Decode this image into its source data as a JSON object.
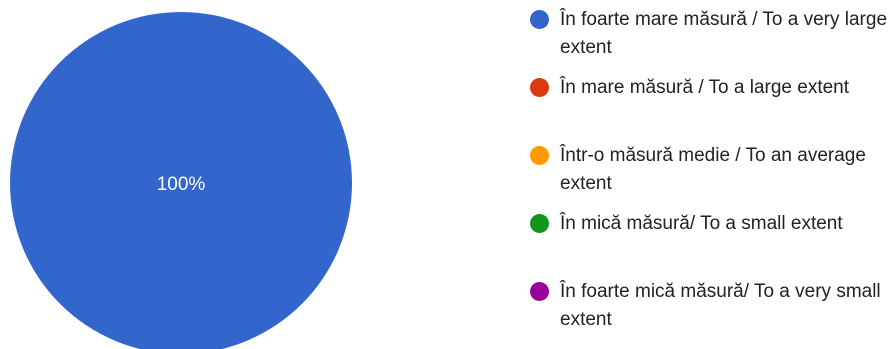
{
  "chart_data": {
    "type": "pie",
    "series": [
      {
        "name": "În foarte mare măsură / To a very large extent",
        "value": 100,
        "color": "#3366cc"
      },
      {
        "name": "În mare măsură / To a large extent",
        "value": 0,
        "color": "#dc3912"
      },
      {
        "name": "Într-o măsură medie / To an average extent",
        "value": 0,
        "color": "#ff9900"
      },
      {
        "name": "În mică măsură/ To a small extent",
        "value": 0,
        "color": "#109618"
      },
      {
        "name": "În foarte mică măsură/ To a very small extent",
        "value": 0,
        "color": "#990099"
      }
    ],
    "data_labels": [
      "100%"
    ],
    "legend_position": "right"
  }
}
